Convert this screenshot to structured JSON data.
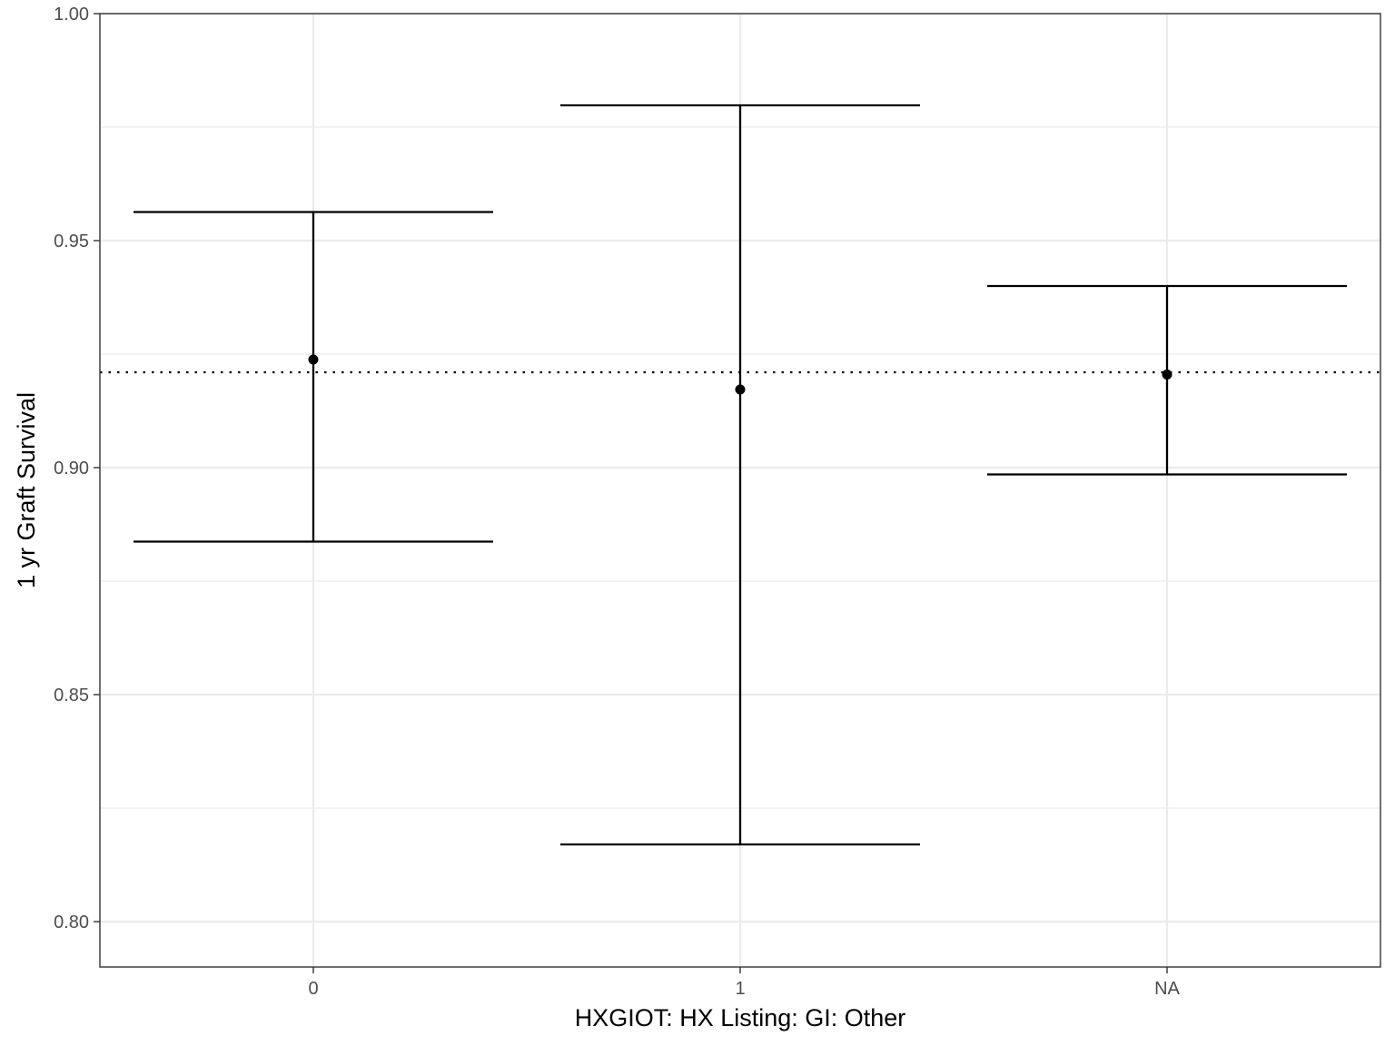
{
  "chart_data": {
    "type": "errorbar",
    "xlabel": "HXGIOT: HX Listing: GI: Other",
    "ylabel": "1 yr Graft Survival",
    "categories": [
      "0",
      "1",
      "NA"
    ],
    "estimates": [
      0.9238,
      0.9172,
      0.9205
    ],
    "lower": [
      0.8837,
      0.817,
      0.8985
    ],
    "upper": [
      0.9563,
      0.9798,
      0.94
    ],
    "reference_line": {
      "y": 0.921,
      "style": "dotted"
    },
    "ylim": [
      0.79,
      1.0
    ],
    "y_ticks": [
      "0.80",
      "0.85",
      "0.90",
      "0.95",
      "1.00"
    ],
    "grid": true,
    "colors": {
      "marks": "#000000",
      "grid": "#ebebeb",
      "panel_border": "#333333",
      "tick_text": "#4d4d4d"
    }
  }
}
